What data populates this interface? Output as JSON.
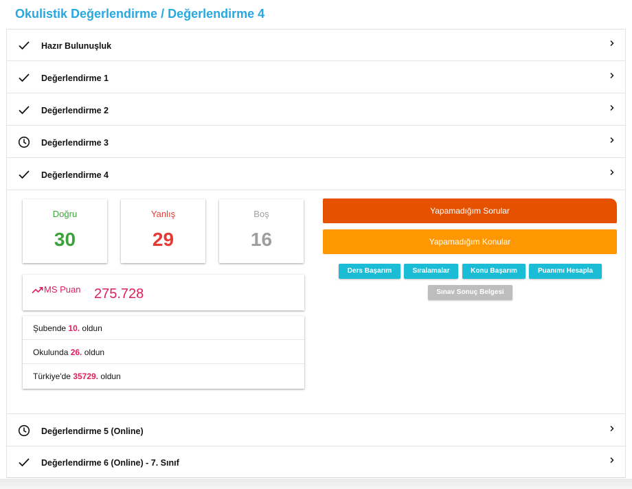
{
  "page": {
    "title": "Okulistik Değerlendirme / Değerlendirme 4"
  },
  "accordion": {
    "items": [
      {
        "label": "Hazır Bulunuşluk",
        "icon": "check-icon"
      },
      {
        "label": "Değerlendirme 1",
        "icon": "check-icon"
      },
      {
        "label": "Değerlendirme 2",
        "icon": "check-icon"
      },
      {
        "label": "Değerlendirme 3",
        "icon": "clock-icon"
      },
      {
        "label": "Değerlendirme 4",
        "icon": "check-icon"
      },
      {
        "label": "Değerlendirme 5 (Online)",
        "icon": "clock-icon"
      },
      {
        "label": "Değerlendirme 6 (Online) - 7. Sınıf",
        "icon": "check-icon"
      }
    ]
  },
  "stats": {
    "correct": {
      "label": "Doğru",
      "value": "30",
      "color": "#3ca33c"
    },
    "wrong": {
      "label": "Yanlış",
      "value": "29",
      "color": "#e53935"
    },
    "empty": {
      "label": "Boş",
      "value": "16",
      "color": "#9e9e9e"
    }
  },
  "ms": {
    "icon": "trending-up-icon",
    "label": "MS Puan",
    "value": "275.728"
  },
  "ranks": [
    {
      "prefix": "Şubende ",
      "number": "10.",
      "suffix": " oldun"
    },
    {
      "prefix": "Okulunda ",
      "number": "26.",
      "suffix": " oldun"
    },
    {
      "prefix": "Türkiye'de ",
      "number": "35729.",
      "suffix": " oldun"
    }
  ],
  "actions": {
    "unsolved_questions": "Yapamadığım Sorular",
    "unsolved_topics": "Yapamadığım Konular",
    "course_success": "Ders Başarım",
    "rankings": "Sıralamalar",
    "topic_success": "Konu Başarım",
    "calc_score": "Puanımı Hesapla",
    "result_doc": "Sınav Sonuç Belgesi"
  },
  "colors": {
    "accent": "#28a8e0",
    "pink": "#e01e5a",
    "orange_dark": "#e65100",
    "orange": "#ff9800",
    "cyan": "#1abcd6"
  }
}
